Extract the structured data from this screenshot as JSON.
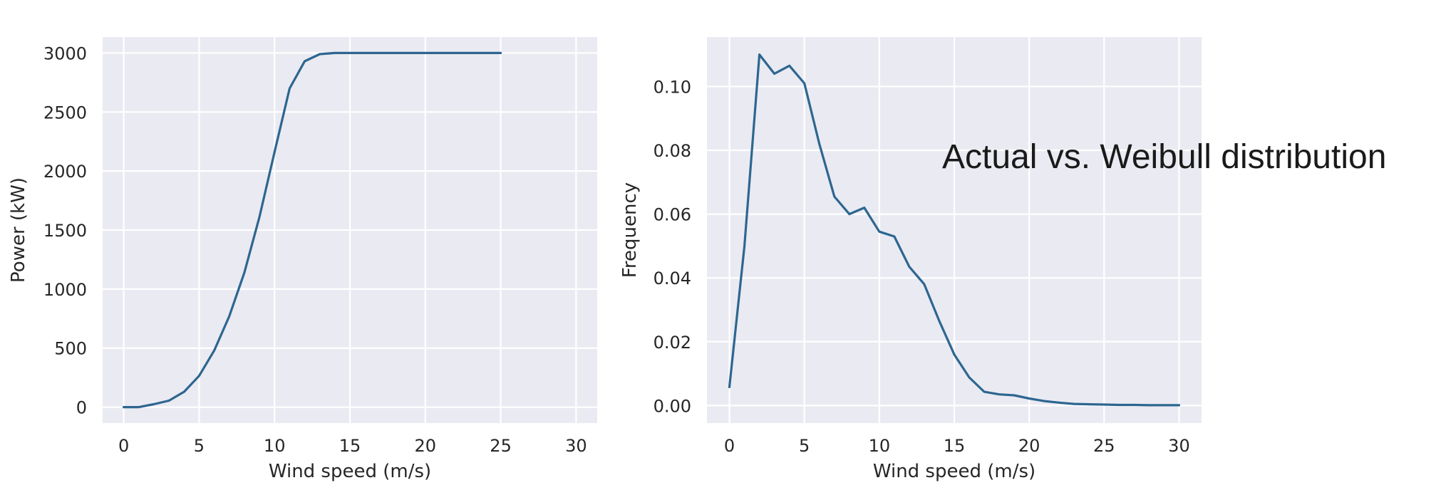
{
  "annotation": "Actual vs. Weibull distribution",
  "chart_data": [
    {
      "type": "line",
      "title": "",
      "xlabel": "Wind speed (m/s)",
      "ylabel": "Power (kW)",
      "xlim": [
        -1.4,
        31.4
      ],
      "ylim": [
        -135,
        3135
      ],
      "xticks": [
        0,
        5,
        10,
        15,
        20,
        25,
        30
      ],
      "yticks": [
        0,
        500,
        1000,
        1500,
        2000,
        2500,
        3000
      ],
      "grid": true,
      "series": [
        {
          "color": "#2d6690",
          "x": [
            0,
            1,
            2,
            3,
            4,
            5,
            6,
            7,
            8,
            9,
            10,
            11,
            12,
            13,
            14,
            15,
            16,
            17,
            18,
            19,
            20,
            21,
            22,
            23,
            24,
            25
          ],
          "y": [
            0,
            0,
            25,
            55,
            130,
            265,
            480,
            770,
            1140,
            1610,
            2160,
            2700,
            2930,
            2990,
            3000,
            3000,
            3000,
            3000,
            3000,
            3000,
            3000,
            3000,
            3000,
            3000,
            3000,
            3000
          ]
        }
      ]
    },
    {
      "type": "line",
      "title": "",
      "xlabel": "Wind speed (m/s)",
      "ylabel": "Frequency",
      "xlim": [
        -1.5,
        31.5
      ],
      "ylim": [
        -0.0055,
        0.1155
      ],
      "xticks": [
        0,
        5,
        10,
        15,
        20,
        25,
        30
      ],
      "yticks": [
        "0.00",
        "0.02",
        "0.04",
        "0.06",
        "0.08",
        "0.10"
      ],
      "grid": true,
      "series": [
        {
          "color": "#2d6690",
          "x": [
            0,
            1,
            2,
            3,
            4,
            5,
            6,
            7,
            8,
            9,
            10,
            11,
            12,
            13,
            14,
            15,
            16,
            17,
            18,
            19,
            20,
            21,
            22,
            23,
            24,
            25,
            26,
            27,
            28,
            29,
            30
          ],
          "y": [
            0.0058,
            0.05,
            0.11,
            0.104,
            0.1065,
            0.101,
            0.082,
            0.0655,
            0.06,
            0.062,
            0.0545,
            0.053,
            0.0435,
            0.038,
            0.0265,
            0.016,
            0.0088,
            0.0043,
            0.0035,
            0.0032,
            0.0022,
            0.0014,
            0.0009,
            0.0005,
            0.0004,
            0.0003,
            0.0002,
            0.0002,
            0.0001,
            0.0001,
            0.0001
          ]
        }
      ]
    }
  ]
}
